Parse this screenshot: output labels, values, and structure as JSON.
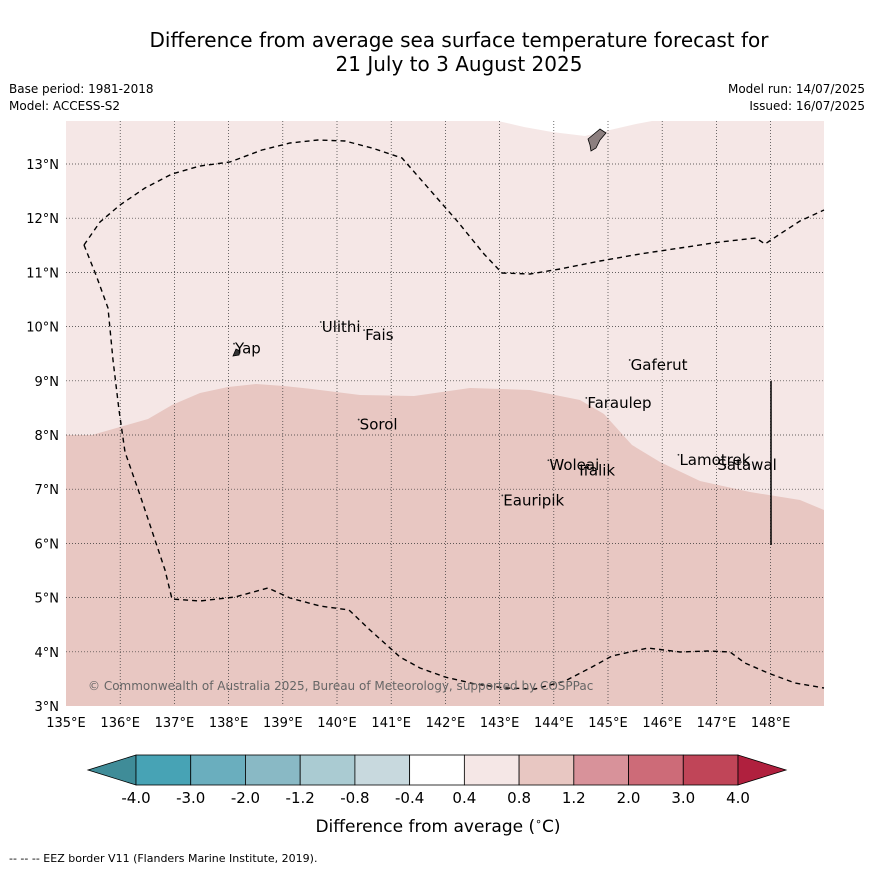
{
  "title_line1": "Difference from average sea surface temperature forecast for",
  "title_line2": "21 July to 3 August 2025",
  "base_period": "Base period: 1981-2018",
  "model": "Model: ACCESS-S2",
  "model_run": "Model run: 14/07/2025",
  "issued": "Issued: 16/07/2025",
  "copyright": "© Commonwealth of Australia 2025, Bureau of Meteorology, supported by COSPPac",
  "footer": "--  --  -- EEZ border V11 (Flanders Marine Institute, 2019).",
  "map": {
    "lon_range": [
      135,
      149
    ],
    "lat_range": [
      3,
      13.8
    ],
    "lon_ticks": [
      "135°E",
      "136°E",
      "137°E",
      "138°E",
      "139°E",
      "140°E",
      "141°E",
      "142°E",
      "143°E",
      "144°E",
      "145°E",
      "146°E",
      "147°E",
      "148°E"
    ],
    "lat_ticks": [
      "3°N",
      "4°N",
      "5°N",
      "6°N",
      "7°N",
      "8°N",
      "9°N",
      "10°N",
      "11°N",
      "12°N",
      "13°N"
    ],
    "places": [
      {
        "name": "Yap",
        "lon": 138.1,
        "lat": 9.5
      },
      {
        "name": "Ulithi",
        "lon": 139.7,
        "lat": 9.9
      },
      {
        "name": "Fais",
        "lon": 140.5,
        "lat": 9.75
      },
      {
        "name": "Gaferut",
        "lon": 145.4,
        "lat": 9.2
      },
      {
        "name": "Faraulep",
        "lon": 144.6,
        "lat": 8.5
      },
      {
        "name": "Sorol",
        "lon": 140.4,
        "lat": 8.1
      },
      {
        "name": "Lamotrek",
        "lon": 146.3,
        "lat": 7.45
      },
      {
        "name": "Woleai",
        "lon": 143.9,
        "lat": 7.35
      },
      {
        "name": "Ifalik",
        "lon": 144.45,
        "lat": 7.25
      },
      {
        "name": "Satawal",
        "lon": 147.0,
        "lat": 7.35
      },
      {
        "name": "Eauripik",
        "lon": 143.05,
        "lat": 6.7
      }
    ]
  },
  "colorbar": {
    "label": "Difference from average (°C)",
    "tick_labels": [
      "-4.0",
      "-3.0",
      "-2.0",
      "-1.2",
      "-0.8",
      "-0.4",
      "0.4",
      "0.8",
      "1.2",
      "2.0",
      "3.0",
      "4.0"
    ],
    "colors": [
      "#3f8c98",
      "#47a3b5",
      "#6aaebe",
      "#89b9c5",
      "#aacbd2",
      "#c8d9de",
      "#ffffff",
      "#f5e7e6",
      "#e8c7c2",
      "#d8929a",
      "#cd6b78",
      "#c04558",
      "#b0203e"
    ]
  },
  "fills": {
    "low": "#e8c7c2",
    "mid": "#f5e7e6",
    "land": "#8c7f7f"
  }
}
